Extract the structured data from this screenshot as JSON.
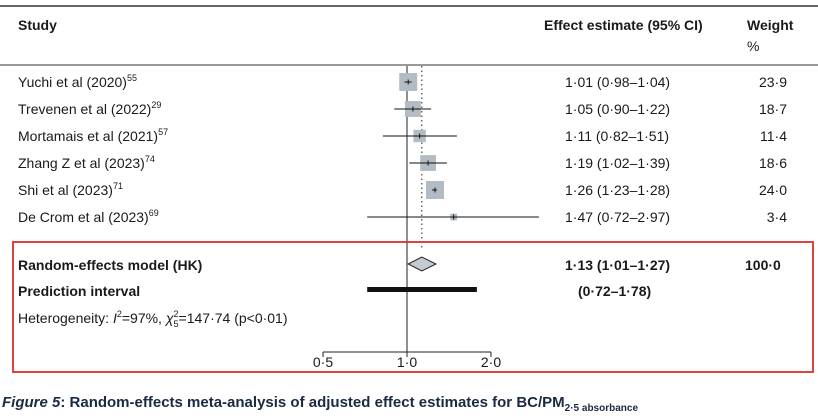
{
  "headers": {
    "study": "Study",
    "effect": "Effect estimate (95% CI)",
    "weight_line1": "Weight",
    "weight_line2": "%"
  },
  "chart_data": {
    "type": "forest",
    "x_scale": "log",
    "null_line": 1.0,
    "pooled_reference": 1.13,
    "x_ticks": [
      0.5,
      1.0,
      2.0
    ],
    "x_tick_labels": [
      "0·5",
      "1·0",
      "2·0"
    ],
    "studies": [
      {
        "label": "Yuchi et al (2020)",
        "ref": "55",
        "est": 1.01,
        "lo": 0.98,
        "hi": 1.04,
        "ci_text": "1·01 (0·98–1·04)",
        "weight": 23.9,
        "weight_text": "23·9"
      },
      {
        "label": "Trevenen et al (2022)",
        "ref": "29",
        "est": 1.05,
        "lo": 0.9,
        "hi": 1.22,
        "ci_text": "1·05 (0·90–1·22)",
        "weight": 18.7,
        "weight_text": "18·7"
      },
      {
        "label": "Mortamais et al (2021)",
        "ref": "57",
        "est": 1.11,
        "lo": 0.82,
        "hi": 1.51,
        "ci_text": "1·11 (0·82–1·51)",
        "weight": 11.4,
        "weight_text": "11·4"
      },
      {
        "label": "Zhang Z et al (2023)",
        "ref": "74",
        "est": 1.19,
        "lo": 1.02,
        "hi": 1.39,
        "ci_text": "1·19 (1·02–1·39)",
        "weight": 18.6,
        "weight_text": "18·6"
      },
      {
        "label": "Shi et al (2023)",
        "ref": "71",
        "est": 1.26,
        "lo": 1.23,
        "hi": 1.28,
        "ci_text": "1·26 (1·23–1·28)",
        "weight": 24.0,
        "weight_text": "24·0"
      },
      {
        "label": "De Crom et al (2023)",
        "ref": "69",
        "est": 1.47,
        "lo": 0.72,
        "hi": 2.97,
        "ci_text": "1·47 (0·72–2·97)",
        "weight": 3.4,
        "weight_text": "3·4"
      }
    ],
    "pooled": {
      "label": "Random-effects model (HK)",
      "est": 1.13,
      "lo": 1.01,
      "hi": 1.27,
      "ci_text": "1·13 (1·01–1·27)",
      "weight_text": "100·0"
    },
    "prediction": {
      "label": "Prediction interval",
      "lo": 0.72,
      "hi": 1.78,
      "ci_text": "(0·72–1·78)"
    },
    "heterogeneity": {
      "prefix": "Heterogeneity: ",
      "i2_symbol": "I",
      "i2_sup": "2",
      "i2_value": "=97%, ",
      "chi_symbol": "χ",
      "chi_sub": "5",
      "chi_sup": "2",
      "chi_value": "=147·74 (p<0·01)"
    }
  },
  "caption": {
    "figure": "Figure 5",
    "text": ": Random-effects meta-analysis of adjusted effect estimates for BC/PM",
    "sub": "2·5 absorbance"
  },
  "colors": {
    "square": "#b3bcc4",
    "highlight_border": "#d9302b",
    "rule": "#333333"
  }
}
